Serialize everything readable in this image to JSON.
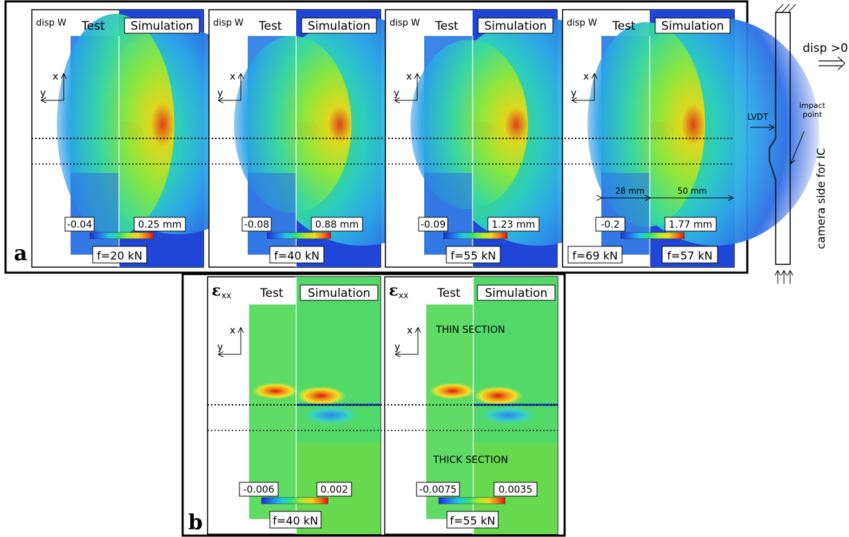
{
  "row_a": {
    "label": "a",
    "panels": [
      {
        "field": "disp W",
        "test": "Test",
        "sim": "Simulation",
        "min": "-0.04",
        "max": "0.25 mm",
        "force": "f=20 kN",
        "hot": 0.9,
        "test_level": 0.75
      },
      {
        "field": "disp W",
        "test": "Test",
        "sim": "Simulation",
        "min": "-0.08",
        "max": "0.88 mm",
        "force": "f=40 kN",
        "hot": 1.0,
        "test_level": 0.35
      },
      {
        "field": "disp W",
        "test": "Test",
        "sim": "Simulation",
        "min": "-0.09",
        "max": "1.23 mm",
        "force": "f=55 kN",
        "hot": 1.0,
        "test_level": 0.28
      },
      {
        "field": "disp W",
        "test": "Test",
        "sim": "Simulation",
        "min": "-0.2",
        "max": "1.77 mm",
        "force": "f=69 kN",
        "force2": "f=57 kN",
        "dim_left": "28 mm",
        "dim_right": "50 mm",
        "hot": 1.0,
        "test_level": 0.6
      }
    ]
  },
  "row_b": {
    "label": "b",
    "panels": [
      {
        "field": "ε",
        "field_sub": "xx",
        "test": "Test",
        "sim": "Simulation",
        "min": "-0.006",
        "max": "0.002",
        "force": "f=40 kN"
      },
      {
        "field": "ε",
        "field_sub": "xx",
        "test": "Test",
        "sim": "Simulation",
        "min": "-0.0075",
        "max": "0.0035",
        "force": "f=55 kN",
        "thin": "THIN SECTION",
        "thick": "THICK SECTION"
      }
    ]
  },
  "axes": {
    "x": "x",
    "y": "y"
  },
  "schematic": {
    "disp": "disp >0",
    "lvdt": "LVDT",
    "impact": [
      "impact",
      "point"
    ],
    "camera": "camera side for IC"
  },
  "colors": {
    "sim_bg": "#1f46d6",
    "strain_bg": "#53d96a",
    "hot": "#d81a10"
  }
}
